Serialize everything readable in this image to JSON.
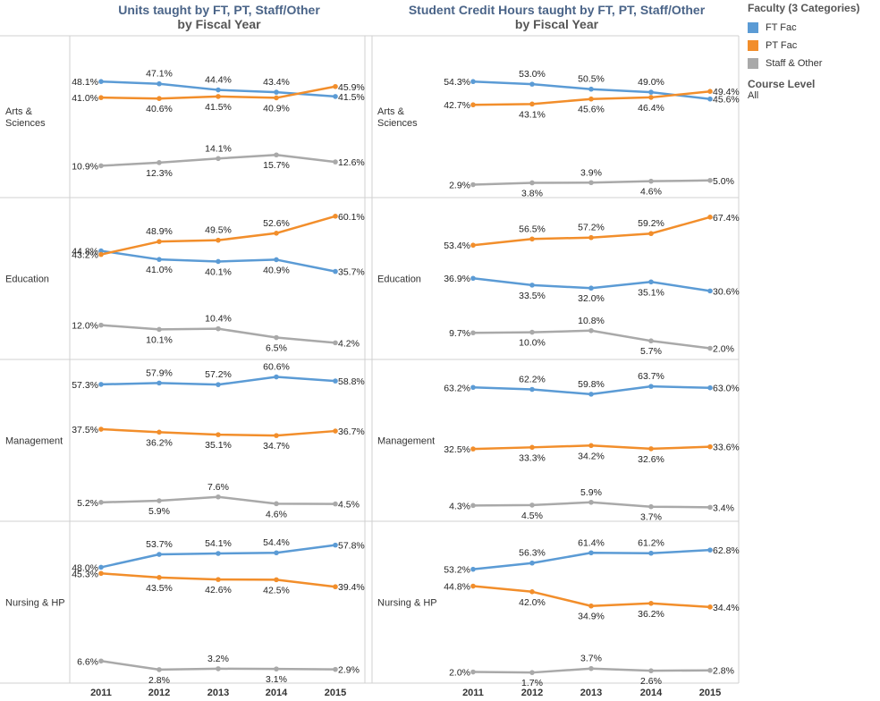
{
  "panels": [
    {
      "title_line1": "Units taught by FT, PT, Staff/Other",
      "title_line2": "by Fiscal Year"
    },
    {
      "title_line1": "Student Credit Hours taught by FT, PT, Staff/Other",
      "title_line2": "by Fiscal Year"
    }
  ],
  "legend": {
    "title": "Faculty (3 Categories)",
    "items": [
      {
        "label": "FT Fac",
        "color": "#5b9bd5"
      },
      {
        "label": "PT Fac",
        "color": "#f28e2b"
      },
      {
        "label": "Staff & Other",
        "color": "#a9a9a9"
      }
    ],
    "course_level_label": "Course Level",
    "course_level_value": "All"
  },
  "chart_data": [
    {
      "type": "line",
      "title": "Units taught by FT, PT, Staff/Other by Fiscal Year",
      "x": [
        "2011",
        "2012",
        "2013",
        "2014",
        "2015"
      ],
      "rows": [
        "Arts & Sciences",
        "Education",
        "Management",
        "Nursing & HP"
      ],
      "ylim": [
        0,
        62
      ],
      "series": [
        {
          "name": "FT Fac",
          "color": "#5b9bd5",
          "values": {
            "Arts & Sciences": [
              48.1,
              47.1,
              44.4,
              43.4,
              41.5
            ],
            "Education": [
              44.8,
              41.0,
              40.1,
              40.9,
              35.7
            ],
            "Management": [
              57.3,
              57.9,
              57.2,
              60.6,
              58.8
            ],
            "Nursing & HP": [
              48.0,
              53.7,
              54.1,
              54.4,
              57.8
            ]
          }
        },
        {
          "name": "PT Fac",
          "color": "#f28e2b",
          "values": {
            "Arts & Sciences": [
              41.0,
              40.6,
              41.5,
              40.9,
              45.9
            ],
            "Education": [
              43.2,
              48.9,
              49.5,
              52.6,
              60.1
            ],
            "Management": [
              37.5,
              36.2,
              35.1,
              34.7,
              36.7
            ],
            "Nursing & HP": [
              45.3,
              43.5,
              42.6,
              42.5,
              39.4
            ]
          }
        },
        {
          "name": "Staff & Other",
          "color": "#a9a9a9",
          "values": {
            "Arts & Sciences": [
              10.9,
              12.3,
              14.1,
              15.7,
              12.6
            ],
            "Education": [
              12.0,
              10.1,
              10.4,
              6.5,
              4.2
            ],
            "Management": [
              5.2,
              5.9,
              7.6,
              4.6,
              4.5
            ],
            "Nursing & HP": [
              6.6,
              2.8,
              3.2,
              3.1,
              2.9
            ]
          }
        }
      ]
    },
    {
      "type": "line",
      "title": "Student Credit Hours taught by FT, PT, Staff/Other by Fiscal Year",
      "x": [
        "2011",
        "2012",
        "2013",
        "2014",
        "2015"
      ],
      "rows": [
        "Arts & Sciences",
        "Education",
        "Management",
        "Nursing & HP"
      ],
      "ylim": [
        0,
        70
      ],
      "series": [
        {
          "name": "FT Fac",
          "color": "#5b9bd5",
          "values": {
            "Arts & Sciences": [
              54.3,
              53.0,
              50.5,
              49.0,
              45.6
            ],
            "Education": [
              36.9,
              33.5,
              32.0,
              35.1,
              30.6
            ],
            "Management": [
              63.2,
              62.2,
              59.8,
              63.7,
              63.0
            ],
            "Nursing & HP": [
              53.2,
              56.3,
              61.4,
              61.2,
              62.8
            ]
          }
        },
        {
          "name": "PT Fac",
          "color": "#f28e2b",
          "values": {
            "Arts & Sciences": [
              42.7,
              43.1,
              45.6,
              46.4,
              49.4
            ],
            "Education": [
              53.4,
              56.5,
              57.2,
              59.2,
              67.4
            ],
            "Management": [
              32.5,
              33.3,
              34.2,
              32.6,
              33.6
            ],
            "Nursing & HP": [
              44.8,
              42.0,
              34.9,
              36.2,
              34.4
            ]
          }
        },
        {
          "name": "Staff & Other",
          "color": "#a9a9a9",
          "values": {
            "Arts & Sciences": [
              2.9,
              3.8,
              3.9,
              4.6,
              5.0
            ],
            "Education": [
              9.7,
              10.0,
              10.8,
              5.7,
              2.0
            ],
            "Management": [
              4.3,
              4.5,
              5.9,
              3.7,
              3.4
            ],
            "Nursing & HP": [
              2.0,
              1.7,
              3.7,
              2.6,
              2.8
            ]
          }
        }
      ]
    }
  ]
}
